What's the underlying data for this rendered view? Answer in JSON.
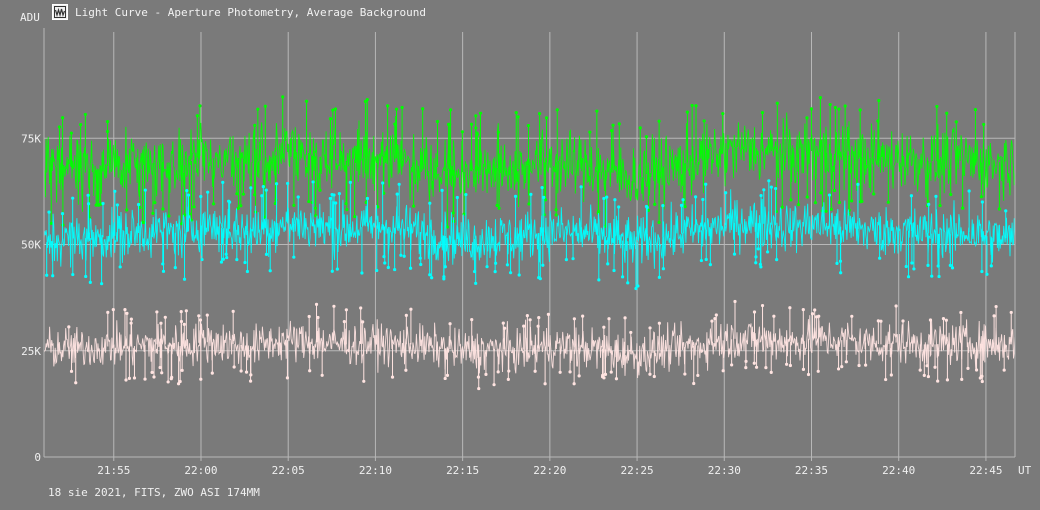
{
  "window": {
    "title": "Light Curve - Aperture Photometry, Average Background",
    "icon": "light-curve-app-icon"
  },
  "footer": {
    "info": "18 sie 2021, FITS, ZWO ASI 174MM"
  },
  "colors": {
    "background": "#7a7a7a",
    "grid": "#b8b8b8",
    "axis_text": "#f0f0f0"
  },
  "chart_data": {
    "type": "line",
    "title": "Light Curve - Aperture Photometry, Average Background",
    "ylabel": "ADU",
    "xlabel": "UT",
    "ylim": [
      0,
      100000
    ],
    "xlim": [
      "21:51:00",
      "22:46:40"
    ],
    "y_ticks": [
      {
        "value": 0,
        "label": "0"
      },
      {
        "value": 25000,
        "label": "25K"
      },
      {
        "value": 50000,
        "label": "50K"
      },
      {
        "value": 75000,
        "label": "75K"
      }
    ],
    "x_ticks": [
      {
        "value": "21:55",
        "label": "21:55"
      },
      {
        "value": "22:00",
        "label": "22:00"
      },
      {
        "value": "22:05",
        "label": "22:05"
      },
      {
        "value": "22:10",
        "label": "22:10"
      },
      {
        "value": "22:15",
        "label": "22:15"
      },
      {
        "value": "22:20",
        "label": "22:20"
      },
      {
        "value": "22:25",
        "label": "22:25"
      },
      {
        "value": "22:30",
        "label": "22:30"
      },
      {
        "value": "22:35",
        "label": "22:35"
      },
      {
        "value": "22:40",
        "label": "22:40"
      },
      {
        "value": "22:45",
        "label": "22:45"
      }
    ],
    "grid": true,
    "legend": "none",
    "series": [
      {
        "color": "#00ff00",
        "x": [
          "21:51",
          "21:52",
          "21:53",
          "21:54",
          "21:55",
          "21:56",
          "21:57",
          "21:58",
          "21:59",
          "22:00",
          "22:01",
          "22:02",
          "22:03",
          "22:04",
          "22:05",
          "22:06",
          "22:07",
          "22:08",
          "22:09",
          "22:10",
          "22:11",
          "22:12",
          "22:13",
          "22:14",
          "22:15",
          "22:16",
          "22:17",
          "22:18",
          "22:19",
          "22:20",
          "22:21",
          "22:22",
          "22:23",
          "22:24",
          "22:25",
          "22:26",
          "22:27",
          "22:28",
          "22:29",
          "22:30",
          "22:31",
          "22:32",
          "22:33",
          "22:34",
          "22:35",
          "22:36",
          "22:37",
          "22:38",
          "22:39",
          "22:40",
          "22:41",
          "22:42",
          "22:43",
          "22:44",
          "22:45",
          "22:46"
        ],
        "values": [
          67500,
          68500,
          68000,
          67500,
          69000,
          68500,
          69000,
          69500,
          68500,
          71000,
          70000,
          70500,
          69500,
          70500,
          72000,
          71000,
          70500,
          69500,
          70000,
          71000,
          70500,
          69500,
          68500,
          68000,
          67000,
          67500,
          68000,
          67500,
          69000,
          69500,
          69000,
          68500,
          67500,
          66500,
          65500,
          67500,
          68000,
          69500,
          70000,
          71500,
          72500,
          72000,
          71500,
          71000,
          72000,
          71500,
          71000,
          70500,
          70000,
          70500,
          70000,
          69500,
          70000,
          70000,
          69000,
          69500
        ],
        "spread": 14000
      },
      {
        "color": "#00ffff",
        "x": [
          "21:51",
          "21:52",
          "21:53",
          "21:54",
          "21:55",
          "21:56",
          "21:57",
          "21:58",
          "21:59",
          "22:00",
          "22:01",
          "22:02",
          "22:03",
          "22:04",
          "22:05",
          "22:06",
          "22:07",
          "22:08",
          "22:09",
          "22:10",
          "22:11",
          "22:12",
          "22:13",
          "22:14",
          "22:15",
          "22:16",
          "22:17",
          "22:18",
          "22:19",
          "22:20",
          "22:21",
          "22:22",
          "22:23",
          "22:24",
          "22:25",
          "22:26",
          "22:27",
          "22:28",
          "22:29",
          "22:30",
          "22:31",
          "22:32",
          "22:33",
          "22:34",
          "22:35",
          "22:36",
          "22:37",
          "22:38",
          "22:39",
          "22:40",
          "22:41",
          "22:42",
          "22:43",
          "22:44",
          "22:45",
          "22:46"
        ],
        "values": [
          50500,
          51000,
          51500,
          51500,
          52000,
          52500,
          53000,
          53000,
          52500,
          54500,
          54000,
          53500,
          53000,
          54000,
          55000,
          54500,
          54000,
          53500,
          54000,
          54500,
          54000,
          53500,
          52500,
          52000,
          51000,
          51500,
          52000,
          51500,
          52500,
          53000,
          53000,
          52500,
          52000,
          51000,
          50500,
          51500,
          52000,
          53000,
          53500,
          54500,
          55500,
          55000,
          54500,
          54000,
          55000,
          54500,
          54000,
          53500,
          53000,
          53500,
          53000,
          52500,
          52500,
          53000,
          52000,
          51500
        ],
        "spread": 11000
      },
      {
        "color": "#ffe4e1",
        "x": [
          "21:51",
          "21:52",
          "21:53",
          "21:54",
          "21:55",
          "21:56",
          "21:57",
          "21:58",
          "21:59",
          "22:00",
          "22:01",
          "22:02",
          "22:03",
          "22:04",
          "22:05",
          "22:06",
          "22:07",
          "22:08",
          "22:09",
          "22:10",
          "22:11",
          "22:12",
          "22:13",
          "22:14",
          "22:15",
          "22:16",
          "22:17",
          "22:18",
          "22:19",
          "22:20",
          "22:21",
          "22:22",
          "22:23",
          "22:24",
          "22:25",
          "22:26",
          "22:27",
          "22:28",
          "22:29",
          "22:30",
          "22:31",
          "22:32",
          "22:33",
          "22:34",
          "22:35",
          "22:36",
          "22:37",
          "22:38",
          "22:39",
          "22:40",
          "22:41",
          "22:42",
          "22:43",
          "22:44",
          "22:45",
          "22:46"
        ],
        "values": [
          25500,
          25500,
          25500,
          26000,
          26000,
          26000,
          26500,
          26500,
          26000,
          27000,
          27000,
          26500,
          26000,
          27000,
          27500,
          27000,
          27000,
          26500,
          26500,
          27000,
          26500,
          26500,
          26000,
          25500,
          25000,
          25000,
          25500,
          25000,
          25500,
          26000,
          26000,
          25500,
          25500,
          24500,
          24000,
          25000,
          25500,
          26000,
          26500,
          27500,
          28000,
          27500,
          27500,
          27000,
          28000,
          27500,
          27500,
          27000,
          26500,
          27000,
          26500,
          26500,
          26500,
          27000,
          26500,
          26500
        ],
        "spread": 9000
      }
    ]
  }
}
